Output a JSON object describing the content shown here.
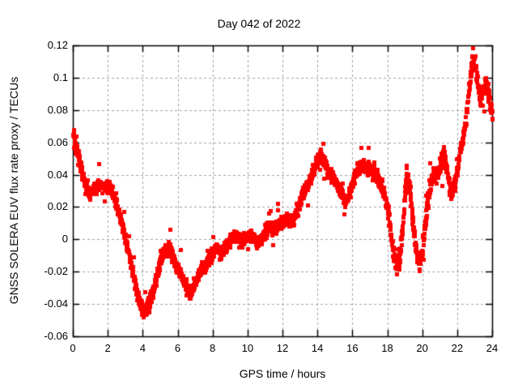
{
  "chart_data": {
    "type": "scatter",
    "title": "Day 042 of 2022",
    "xlabel": "GPS time / hours",
    "ylabel": "GNSS SOLERA EUV flux rate proxy / TECUs",
    "xlim": [
      0,
      24
    ],
    "ylim": [
      -0.06,
      0.12
    ],
    "grid": true,
    "legend_position": "none",
    "background_color": "#ffffff",
    "axis_color": "#000000",
    "grid_color": "#a2a2a2",
    "x_ticks": {
      "values": [
        0,
        2,
        4,
        6,
        8,
        10,
        12,
        14,
        16,
        18,
        20,
        22,
        24
      ],
      "labels": [
        "0",
        "2",
        "4",
        "6",
        "8",
        "10",
        "12",
        "14",
        "16",
        "18",
        "20",
        "22",
        "24"
      ]
    },
    "y_ticks": {
      "values": [
        -0.06,
        -0.04,
        -0.02,
        0,
        0.02,
        0.04,
        0.06,
        0.08,
        0.1,
        0.12
      ],
      "labels": [
        "-0.06",
        "-0.04",
        "-0.02",
        "0",
        "0.02",
        "0.04",
        "0.06",
        "0.08",
        "0.1",
        "0.12"
      ]
    },
    "series": [
      {
        "name": "EUV flux rate proxy",
        "marker_shape": "square",
        "marker_color": "#ff0000",
        "marker_size_px": 5,
        "sampling_hours": 0.01,
        "anchors_format": [
          "hour",
          "center_value",
          "half_spread"
        ],
        "anchors": [
          [
            0.0,
            0.058,
            0.011
          ],
          [
            0.15,
            0.052,
            0.009
          ],
          [
            0.4,
            0.044,
            0.007
          ],
          [
            0.7,
            0.035,
            0.006
          ],
          [
            1.0,
            0.03,
            0.006
          ],
          [
            1.3,
            0.034,
            0.006
          ],
          [
            1.6,
            0.037,
            0.006
          ],
          [
            1.9,
            0.034,
            0.006
          ],
          [
            2.2,
            0.027,
            0.006
          ],
          [
            2.5,
            0.02,
            0.006
          ],
          [
            2.8,
            0.009,
            0.006
          ],
          [
            3.1,
            -0.005,
            0.006
          ],
          [
            3.4,
            -0.018,
            0.006
          ],
          [
            3.7,
            -0.031,
            0.006
          ],
          [
            3.95,
            -0.042,
            0.006
          ],
          [
            4.15,
            -0.046,
            0.006
          ],
          [
            4.4,
            -0.04,
            0.006
          ],
          [
            4.7,
            -0.028,
            0.006
          ],
          [
            5.0,
            -0.016,
            0.006
          ],
          [
            5.3,
            -0.007,
            0.006
          ],
          [
            5.55,
            -0.003,
            0.006
          ],
          [
            5.8,
            -0.01,
            0.006
          ],
          [
            6.1,
            -0.02,
            0.006
          ],
          [
            6.4,
            -0.028,
            0.006
          ],
          [
            6.7,
            -0.033,
            0.006
          ],
          [
            7.0,
            -0.03,
            0.006
          ],
          [
            7.3,
            -0.023,
            0.006
          ],
          [
            7.6,
            -0.014,
            0.006
          ],
          [
            7.9,
            -0.008,
            0.006
          ],
          [
            8.3,
            -0.005,
            0.006
          ],
          [
            8.8,
            -0.003,
            0.006
          ],
          [
            9.4,
            -0.001,
            0.006
          ],
          [
            10.0,
            0.001,
            0.006
          ],
          [
            10.6,
            0.003,
            0.006
          ],
          [
            11.2,
            0.005,
            0.006
          ],
          [
            11.8,
            0.007,
            0.006
          ],
          [
            12.2,
            0.011,
            0.006
          ],
          [
            12.6,
            0.016,
            0.006
          ],
          [
            13.0,
            0.024,
            0.006
          ],
          [
            13.4,
            0.034,
            0.006
          ],
          [
            13.8,
            0.043,
            0.006
          ],
          [
            14.1,
            0.048,
            0.006
          ],
          [
            14.4,
            0.047,
            0.006
          ],
          [
            14.8,
            0.041,
            0.006
          ],
          [
            15.2,
            0.033,
            0.006
          ],
          [
            15.6,
            0.027,
            0.006
          ],
          [
            15.9,
            0.03,
            0.006
          ],
          [
            16.2,
            0.038,
            0.006
          ],
          [
            16.5,
            0.045,
            0.006
          ],
          [
            16.8,
            0.044,
            0.006
          ],
          [
            17.1,
            0.042,
            0.007
          ],
          [
            17.5,
            0.042,
            0.007
          ],
          [
            17.8,
            0.033,
            0.007
          ],
          [
            18.05,
            0.015,
            0.008
          ],
          [
            18.3,
            -0.008,
            0.008
          ],
          [
            18.5,
            -0.019,
            0.007
          ],
          [
            18.7,
            -0.012,
            0.007
          ],
          [
            18.9,
            0.008,
            0.008
          ],
          [
            19.1,
            0.038,
            0.009
          ],
          [
            19.3,
            0.028,
            0.008
          ],
          [
            19.5,
            0.008,
            0.008
          ],
          [
            19.7,
            -0.006,
            0.007
          ],
          [
            19.85,
            -0.012,
            0.007
          ],
          [
            20.0,
            -0.004,
            0.007
          ],
          [
            20.2,
            0.014,
            0.008
          ],
          [
            20.45,
            0.036,
            0.008
          ],
          [
            20.7,
            0.041,
            0.007
          ],
          [
            20.95,
            0.038,
            0.007
          ],
          [
            21.2,
            0.049,
            0.008
          ],
          [
            21.45,
            0.04,
            0.008
          ],
          [
            21.65,
            0.03,
            0.008
          ],
          [
            21.85,
            0.036,
            0.007
          ],
          [
            22.05,
            0.048,
            0.007
          ],
          [
            22.25,
            0.06,
            0.007
          ],
          [
            22.45,
            0.075,
            0.007
          ],
          [
            22.65,
            0.094,
            0.007
          ],
          [
            22.85,
            0.11,
            0.007
          ],
          [
            23.0,
            0.108,
            0.007
          ],
          [
            23.15,
            0.094,
            0.007
          ],
          [
            23.3,
            0.081,
            0.007
          ],
          [
            23.5,
            0.092,
            0.007
          ],
          [
            23.65,
            0.099,
            0.007
          ],
          [
            23.8,
            0.09,
            0.007
          ],
          [
            23.95,
            0.079,
            0.007
          ],
          [
            24.0,
            0.076,
            0.007
          ]
        ]
      }
    ]
  }
}
